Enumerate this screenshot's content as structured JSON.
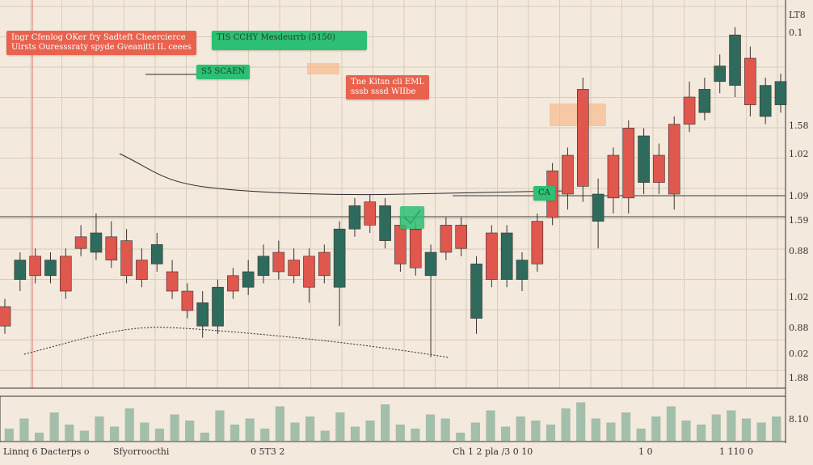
{
  "chart_data": {
    "type": "candlestick",
    "open": [
      21,
      28,
      34,
      29,
      34,
      39,
      35,
      39,
      38,
      33,
      32,
      30,
      25,
      16,
      16,
      29,
      26,
      29,
      35,
      33,
      34,
      35,
      26,
      41,
      48,
      38,
      42,
      41,
      29,
      42,
      42,
      18,
      40,
      28,
      28,
      43,
      56,
      60,
      77,
      43,
      60,
      67,
      53,
      60,
      68,
      75,
      71,
      79,
      78,
      85,
      70,
      73
    ],
    "high": [
      23,
      35,
      36,
      35,
      36,
      42,
      45,
      43,
      41,
      36,
      40,
      33,
      27,
      25,
      28,
      31,
      33,
      37,
      38,
      36,
      36,
      37,
      43,
      49,
      50,
      49,
      44,
      43,
      37,
      44,
      44,
      34,
      42,
      42,
      35,
      45,
      58,
      62,
      80,
      54,
      62,
      69,
      67,
      63,
      70,
      79,
      80,
      86,
      93,
      88,
      80,
      81
    ],
    "low": [
      14,
      25,
      27,
      27,
      23,
      34,
      33,
      31,
      27,
      26,
      30,
      23,
      18,
      13,
      14,
      23,
      24,
      27,
      28,
      27,
      22,
      27,
      16,
      39,
      40,
      36,
      30,
      29,
      8,
      33,
      34,
      14,
      26,
      26,
      25,
      30,
      42,
      46,
      48,
      36,
      45,
      45,
      50,
      50,
      46,
      66,
      69,
      76,
      75,
      70,
      68,
      71
    ],
    "close": [
      16,
      33,
      29,
      33,
      25,
      36,
      40,
      33,
      29,
      28,
      37,
      25,
      20,
      22,
      26,
      25,
      30,
      34,
      30,
      29,
      26,
      29,
      41,
      47,
      42,
      47,
      32,
      31,
      35,
      35,
      36,
      32,
      28,
      40,
      33,
      32,
      44,
      50,
      52,
      50,
      49,
      49,
      65,
      53,
      50,
      68,
      77,
      83,
      91,
      73,
      78,
      79
    ],
    "ylim": [
      0,
      100
    ],
    "up_color": "#2f6b5c",
    "down_color": "#e0574e",
    "grid": true,
    "volume": [
      30,
      55,
      20,
      70,
      40,
      25,
      60,
      35,
      80,
      45,
      30,
      65,
      50,
      20,
      75,
      40,
      55,
      30,
      85,
      45,
      60,
      25,
      70,
      35,
      50,
      90,
      40,
      30,
      65,
      55,
      20,
      45,
      75,
      35,
      60,
      50,
      40,
      80,
      95,
      55,
      45,
      70,
      30,
      60,
      85,
      50,
      40,
      65,
      75,
      55,
      45,
      60
    ],
    "volume_ylim": [
      0,
      100
    ],
    "volume_color": "#8fb39f"
  },
  "annotations": {
    "red_box_1": [
      "Ingr Cfenlog OKer fry Sadteft Cheercierce",
      "Ulrsts Ouresssraty spyde Gveanittl IL ceees"
    ],
    "green_box_1": "TIS CCHY Mesdeurrb (5150)",
    "green_box_2": "S5 SCAEN",
    "red_box_2": [
      "Tne Kitsn cli EML",
      "sssb  sssd  WIIbe"
    ],
    "green_box_3": "CA"
  },
  "right_axis_labels": [
    "LT8",
    "0.1",
    "1.58",
    "1.02",
    "1.09",
    "1.59",
    "0.88",
    "1.02",
    "0.88",
    "0.02",
    "1.88",
    "8.10"
  ],
  "bottom_labels": [
    "Linnq 6 Dacterps o",
    "Sfyorroocthi",
    "0 5T3 2",
    "Ch 1 2 pla /3 0 10",
    "1 0",
    "1 110 0"
  ]
}
